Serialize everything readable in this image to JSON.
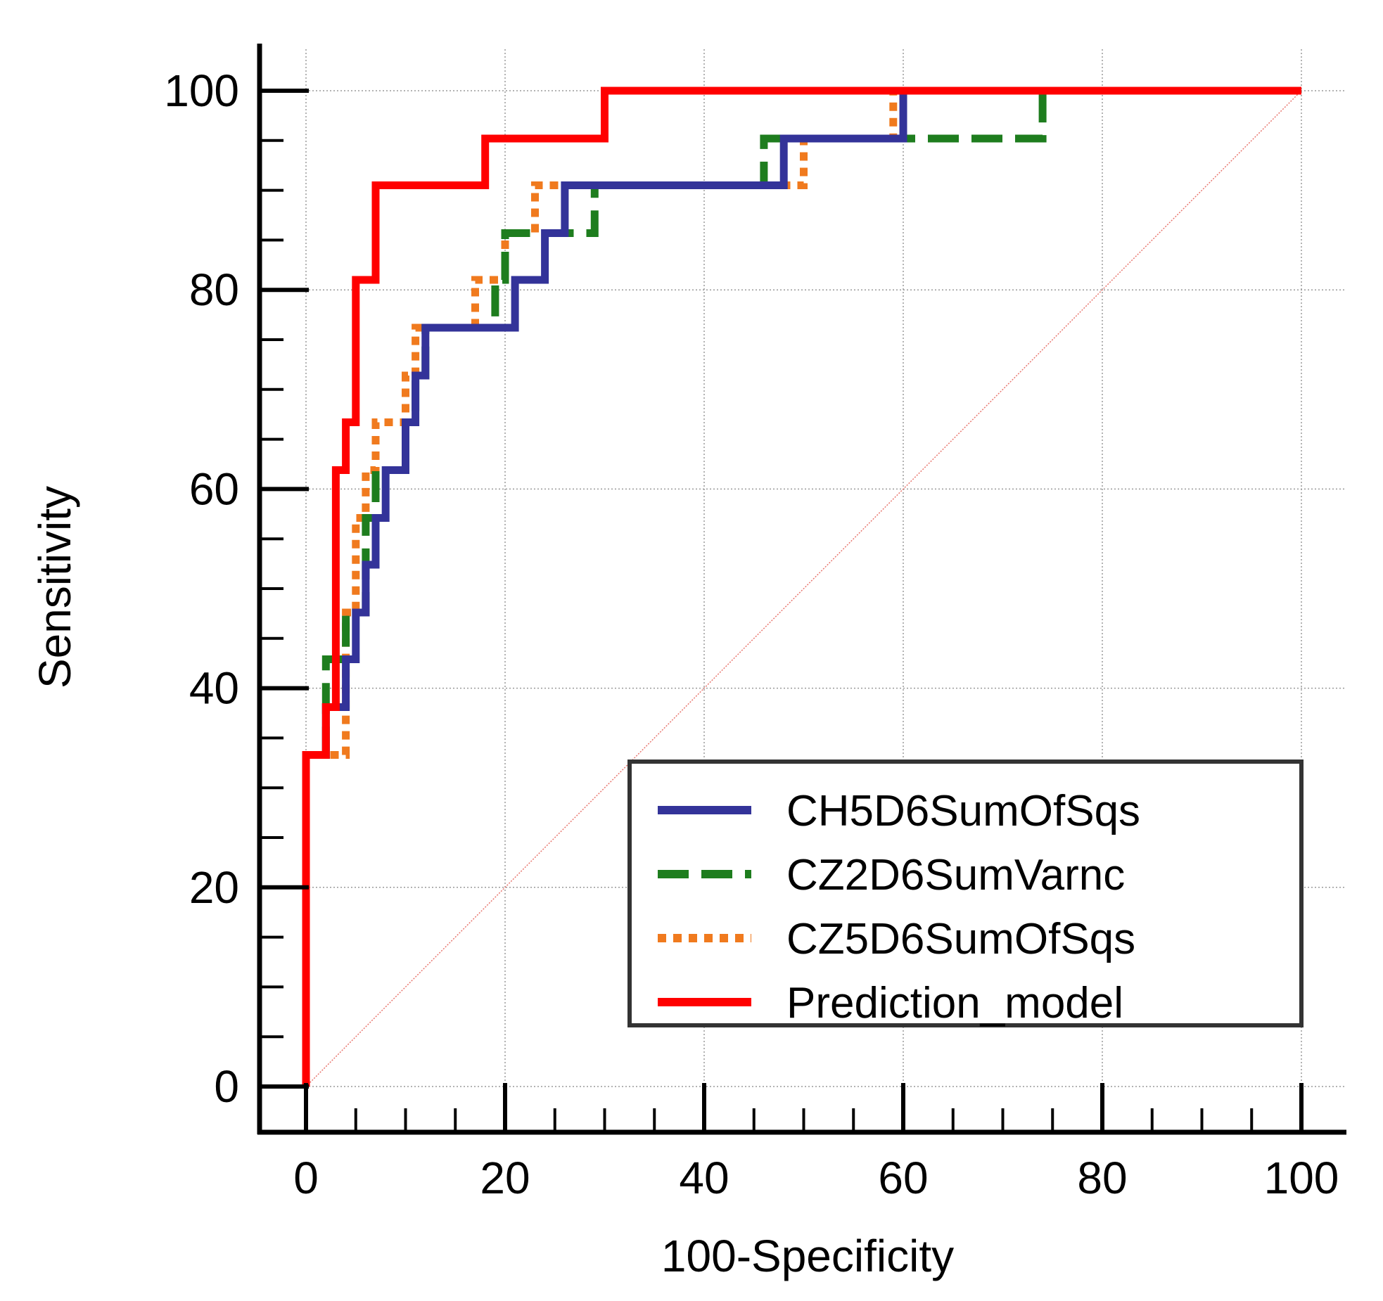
{
  "chart_data": {
    "type": "line",
    "title": "",
    "xlabel": "100-Specificity",
    "ylabel": "Sensitivity",
    "xlim": [
      0,
      100
    ],
    "ylim": [
      0,
      100
    ],
    "x_ticks": [
      "0",
      "20",
      "40",
      "60",
      "80",
      "100"
    ],
    "y_ticks": [
      "0",
      "20",
      "40",
      "60",
      "80",
      "100"
    ],
    "grid": true,
    "legend_position": "bottom-right",
    "reference_line": {
      "name": "diagonal",
      "color": "#e8766e",
      "x": [
        0,
        100
      ],
      "y": [
        0,
        100
      ]
    },
    "series": [
      {
        "name": "CH5D6SumOfSqs",
        "color": "#333399",
        "style": "solid",
        "x": [
          0,
          0,
          2,
          2,
          4,
          4,
          5,
          5,
          6,
          6,
          7,
          7,
          8,
          8,
          10,
          10,
          11,
          11,
          12,
          12,
          19,
          19,
          21,
          21,
          24,
          24,
          26,
          26,
          48,
          48,
          50,
          50,
          60,
          60,
          100
        ],
        "y": [
          0,
          33.3,
          33.3,
          38.1,
          38.1,
          42.9,
          42.9,
          47.6,
          47.6,
          52.4,
          52.4,
          57.1,
          57.1,
          61.9,
          61.9,
          66.7,
          66.7,
          71.4,
          71.4,
          76.2,
          76.2,
          76.2,
          76.2,
          81.0,
          81.0,
          85.7,
          85.7,
          90.5,
          90.5,
          95.2,
          95.2,
          95.2,
          95.2,
          100,
          100
        ]
      },
      {
        "name": "CZ2D6SumVarnc",
        "color": "#1e7d1e",
        "style": "dashed",
        "x": [
          0,
          0,
          2,
          2,
          4,
          4,
          6,
          6,
          7,
          7,
          10,
          10,
          11,
          11,
          12,
          12,
          19,
          19,
          20,
          20,
          23,
          23,
          29,
          29,
          46,
          46,
          74,
          74,
          100
        ],
        "y": [
          0,
          33.3,
          33.3,
          42.9,
          42.9,
          47.6,
          47.6,
          57.1,
          57.1,
          61.9,
          61.9,
          66.7,
          66.7,
          71.4,
          71.4,
          76.2,
          76.2,
          81.0,
          81.0,
          85.7,
          85.7,
          85.7,
          85.7,
          90.5,
          90.5,
          95.2,
          95.2,
          100,
          100
        ]
      },
      {
        "name": "CZ5D6SumOfSqs",
        "color": "#f07a1e",
        "style": "dotted",
        "x": [
          0,
          0,
          3,
          3,
          4,
          4,
          5,
          5,
          6,
          6,
          7,
          7,
          10,
          10,
          11,
          11,
          12,
          12,
          17,
          17,
          19,
          19,
          20,
          20,
          23,
          23,
          50,
          50,
          59,
          59,
          100
        ],
        "y": [
          0,
          33.3,
          33.3,
          33.3,
          33.3,
          47.6,
          47.6,
          57.1,
          57.1,
          61.9,
          61.9,
          66.7,
          66.7,
          71.4,
          71.4,
          76.2,
          76.2,
          76.2,
          76.2,
          81.0,
          81.0,
          81.0,
          81.0,
          85.7,
          85.7,
          90.5,
          90.5,
          95.2,
          95.2,
          100,
          100
        ]
      },
      {
        "name": "Prediction_model",
        "color": "#ff0000",
        "style": "solid",
        "x": [
          0,
          0,
          2,
          2,
          3,
          3,
          4,
          4,
          5,
          5,
          6,
          6,
          7,
          7,
          18,
          18,
          30,
          30,
          100
        ],
        "y": [
          0,
          33.3,
          33.3,
          38.1,
          38.1,
          61.9,
          61.9,
          66.7,
          66.7,
          81.0,
          81.0,
          81.0,
          81.0,
          90.5,
          90.5,
          95.2,
          95.2,
          100,
          100
        ]
      }
    ]
  }
}
